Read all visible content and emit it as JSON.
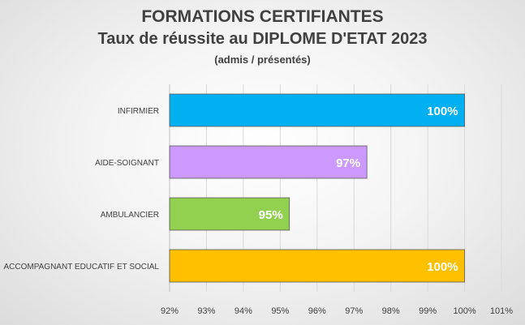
{
  "chart_data": {
    "type": "bar",
    "orientation": "horizontal",
    "title_lines": [
      "FORMATIONS CERTIFIANTES",
      "Taux de réussite au DIPLOME D'ETAT 2023",
      "(admis / présentés)"
    ],
    "categories": [
      "INFIRMIER",
      "AIDE-SOIGNANT",
      "AMBULANCIER",
      "ACCOMPAGNANT EDUCATIF ET SOCIAL"
    ],
    "values": [
      100,
      97.35,
      95.25,
      100
    ],
    "data_labels": [
      "100%",
      "97%",
      "95%",
      "100%"
    ],
    "colors": [
      "#00b0f0",
      "#cc99ff",
      "#92d050",
      "#ffc000"
    ],
    "xlim": [
      92,
      101
    ],
    "x_ticks": [
      92,
      93,
      94,
      95,
      96,
      97,
      98,
      99,
      100,
      101
    ],
    "x_tick_labels": [
      "92%",
      "93%",
      "94%",
      "95%",
      "96%",
      "97%",
      "98%",
      "99%",
      "100%",
      "101%"
    ],
    "grid": "vertical",
    "legend": "none"
  }
}
